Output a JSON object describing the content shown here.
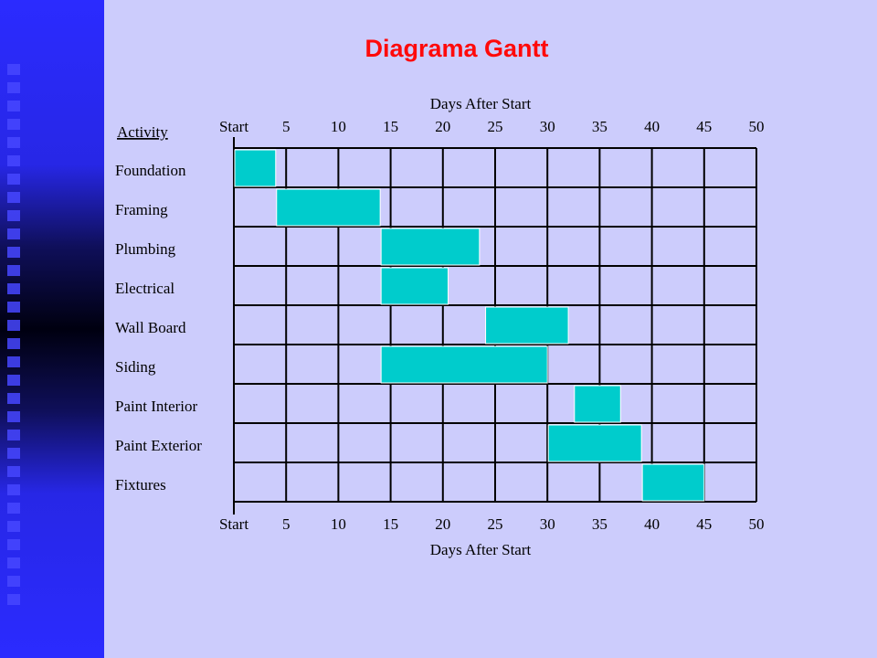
{
  "slide": {
    "title": "Diagrama Gantt"
  },
  "colors": {
    "bar": "#00cccc",
    "background": "#ccccfc",
    "title": "#ff0a0a"
  },
  "chart_data": {
    "type": "gantt",
    "title": "",
    "xlabel": "Days After Start",
    "ylabel": "Activity",
    "xlim": [
      0,
      50
    ],
    "x_ticks": [
      {
        "value": 0,
        "label": "Start"
      },
      {
        "value": 5,
        "label": "5"
      },
      {
        "value": 10,
        "label": "10"
      },
      {
        "value": 15,
        "label": "15"
      },
      {
        "value": 20,
        "label": "20"
      },
      {
        "value": 25,
        "label": "25"
      },
      {
        "value": 30,
        "label": "30"
      },
      {
        "value": 35,
        "label": "35"
      },
      {
        "value": 40,
        "label": "40"
      },
      {
        "value": 45,
        "label": "45"
      },
      {
        "value": 50,
        "label": "50"
      }
    ],
    "grid": true,
    "tasks": [
      {
        "name": "Foundation",
        "start": 0,
        "end": 4
      },
      {
        "name": "Framing",
        "start": 4,
        "end": 14
      },
      {
        "name": "Plumbing",
        "start": 14,
        "end": 23.5
      },
      {
        "name": "Electrical",
        "start": 14,
        "end": 20.5
      },
      {
        "name": "Wall Board",
        "start": 24,
        "end": 32
      },
      {
        "name": "Siding",
        "start": 14,
        "end": 30
      },
      {
        "name": "Paint Interior",
        "start": 32.5,
        "end": 37
      },
      {
        "name": "Paint Exterior",
        "start": 30,
        "end": 39
      },
      {
        "name": "Fixtures",
        "start": 39,
        "end": 45
      }
    ]
  }
}
